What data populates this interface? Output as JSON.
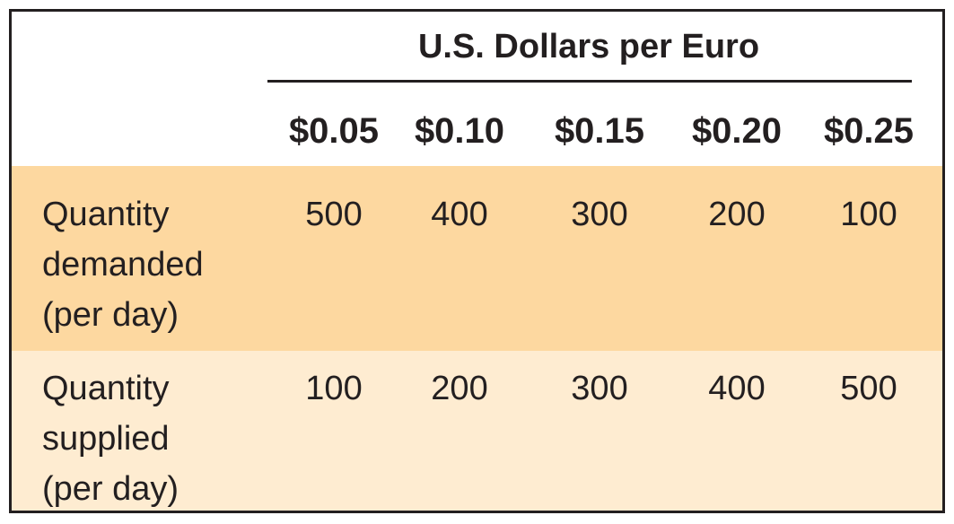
{
  "table": {
    "super_header": "U.S. Dollars per Euro",
    "columns": [
      "$0.05",
      "$0.10",
      "$0.15",
      "$0.20",
      "$0.25"
    ],
    "rows": [
      {
        "label_lines": [
          "Quantity",
          "demanded",
          "(per day)"
        ],
        "values": [
          "500",
          "400",
          "300",
          "200",
          "100"
        ],
        "background": "#fdd8a0"
      },
      {
        "label_lines": [
          "Quantity",
          "supplied",
          "(per day)"
        ],
        "values": [
          "100",
          "200",
          "300",
          "400",
          "500"
        ],
        "background": "#feecd1"
      }
    ]
  }
}
